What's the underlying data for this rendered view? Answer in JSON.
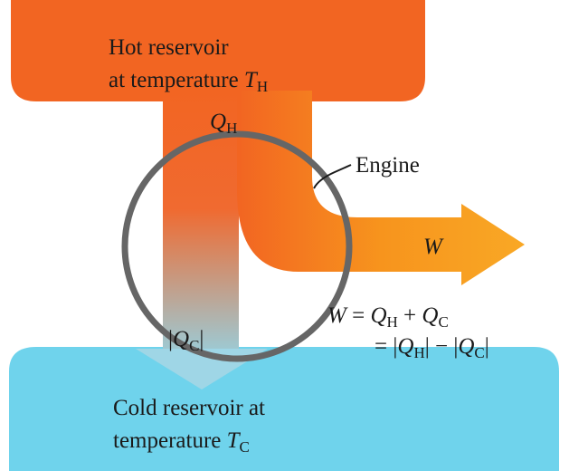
{
  "hot_reservoir": {
    "line1": "Hot reservoir",
    "line2": "at temperature",
    "symbol": "T",
    "subscript": "H"
  },
  "heat_in": {
    "symbol": "Q",
    "subscript": "H"
  },
  "engine_label": "Engine",
  "work_label": "W",
  "heat_out": {
    "open": "|",
    "symbol": "Q",
    "subscript": "C",
    "close": "|"
  },
  "equation": {
    "line1": [
      "W",
      "=",
      "Q",
      "H",
      "+",
      "Q",
      "C"
    ],
    "line2": [
      "=",
      "|",
      "Q",
      "H",
      "|",
      "−",
      "|",
      "Q",
      "C",
      "|"
    ]
  },
  "cold_reservoir": {
    "line1": "Cold reservoir at",
    "line2": "temperature",
    "symbol": "T",
    "subscript": "C"
  }
}
